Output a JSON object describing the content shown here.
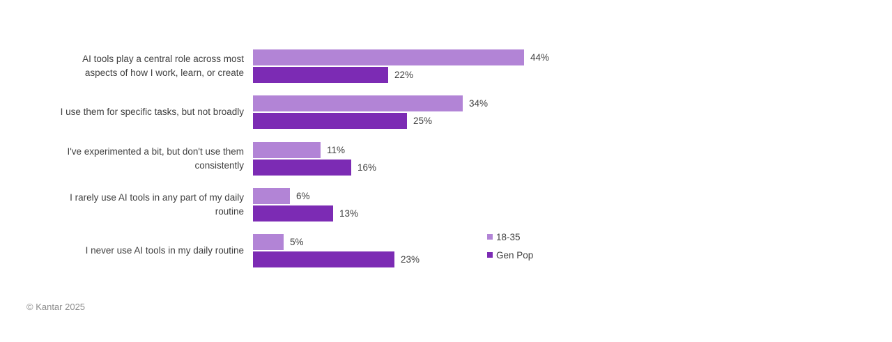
{
  "chart_data": {
    "type": "bar",
    "orientation": "horizontal",
    "title": "",
    "xlabel": "",
    "ylabel": "",
    "xlim": [
      0,
      50
    ],
    "grid": false,
    "axis_visible": false,
    "legend_position": "right-bottom",
    "categories": [
      "AI tools play a central role across most aspects of how I work, learn, or create",
      "I use them for specific tasks, but not broadly",
      "I've experimented a bit, but don't use them consistently",
      "I rarely use AI tools in any part of my daily routine",
      "I never use AI tools in my daily routine"
    ],
    "category_lines": [
      [
        "AI tools play a central role across most",
        "aspects of how I work, learn, or create"
      ],
      [
        "I use them for specific tasks, but not broadly"
      ],
      [
        "I've experimented a bit, but don't use them",
        "consistently"
      ],
      [
        "I rarely use AI tools in any part of my daily",
        "routine"
      ],
      [
        "I never use AI tools in my daily routine"
      ]
    ],
    "series": [
      {
        "name": "18-35",
        "color": "#b284d6",
        "values": [
          44,
          34,
          11,
          6,
          5
        ]
      },
      {
        "name": "Gen Pop",
        "color": "#7c2bb4",
        "values": [
          22,
          25,
          16,
          13,
          23
        ]
      }
    ],
    "value_suffix": "%"
  },
  "legend": {
    "items": [
      {
        "label": "18-35",
        "color": "#b284d6"
      },
      {
        "label": "Gen Pop",
        "color": "#7c2bb4"
      }
    ]
  },
  "footer": {
    "copyright": "© Kantar 2025"
  },
  "colors": {
    "series_18_35": "#b284d6",
    "series_gen_pop": "#7c2bb4",
    "label_text": "#404040",
    "footer_text": "#8d8d8d",
    "background": "#ffffff"
  }
}
